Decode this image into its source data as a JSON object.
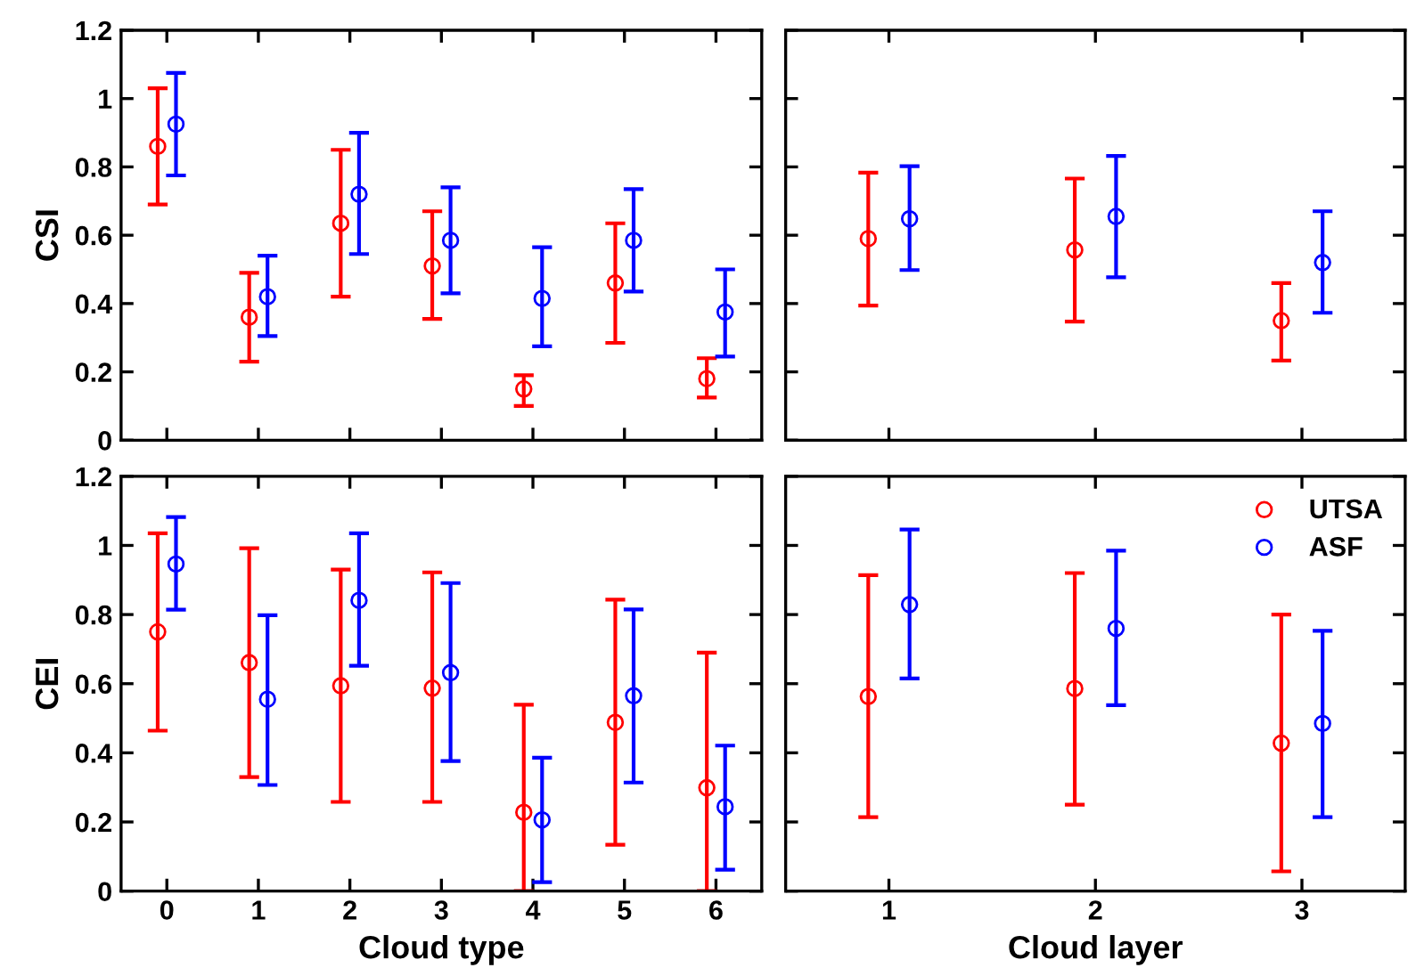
{
  "chart_data": [
    {
      "type": "scatter",
      "ylabel": "CSI",
      "categories": [
        "0",
        "1",
        "2",
        "3",
        "4",
        "5",
        "6"
      ],
      "ylim": [
        0,
        1.2
      ],
      "yticks": [
        0,
        0.2,
        0.4,
        0.6,
        0.8,
        1,
        1.2
      ],
      "tick_labels": "y",
      "marker": "circle",
      "grid": false,
      "legend": false,
      "series": [
        {
          "color": "#ff0000",
          "values": [
            0.86,
            0.36,
            0.635,
            0.51,
            0.15,
            0.46,
            0.18
          ],
          "errors": [
            [
              0.69,
              1.03
            ],
            [
              0.23,
              0.49
            ],
            [
              0.42,
              0.85
            ],
            [
              0.355,
              0.67
            ],
            [
              0.1,
              0.19
            ],
            [
              0.285,
              0.635
            ],
            [
              0.125,
              0.24
            ]
          ]
        },
        {
          "color": "#0000ff",
          "values": [
            0.925,
            0.42,
            0.72,
            0.585,
            0.415,
            0.585,
            0.375
          ],
          "errors": [
            [
              0.775,
              1.075
            ],
            [
              0.305,
              0.54
            ],
            [
              0.545,
              0.9
            ],
            [
              0.43,
              0.74
            ],
            [
              0.275,
              0.565
            ],
            [
              0.435,
              0.735
            ],
            [
              0.245,
              0.5
            ]
          ]
        }
      ]
    },
    {
      "type": "scatter",
      "categories": [
        "1",
        "2",
        "3"
      ],
      "ylim": [
        0,
        1.2
      ],
      "yticks": [
        0,
        0.2,
        0.4,
        0.6,
        0.8,
        1,
        1.2
      ],
      "tick_labels": false,
      "marker": "circle",
      "grid": false,
      "legend": false,
      "series": [
        {
          "color": "#ff0000",
          "values": [
            0.59,
            0.557,
            0.35
          ],
          "errors": [
            [
              0.394,
              0.783
            ],
            [
              0.347,
              0.766
            ],
            [
              0.233,
              0.46
            ]
          ]
        },
        {
          "color": "#0000ff",
          "values": [
            0.648,
            0.655,
            0.52
          ],
          "errors": [
            [
              0.498,
              0.802
            ],
            [
              0.477,
              0.832
            ],
            [
              0.373,
              0.67
            ]
          ]
        }
      ]
    },
    {
      "type": "scatter",
      "ylabel": "CEI",
      "xlabel": "Cloud type",
      "categories": [
        "0",
        "1",
        "2",
        "3",
        "4",
        "5",
        "6"
      ],
      "ylim": [
        0,
        1.2
      ],
      "yticks": [
        0,
        0.2,
        0.4,
        0.6,
        0.8,
        1,
        1.2
      ],
      "marker": "circle",
      "grid": false,
      "legend": false,
      "series": [
        {
          "color": "#ff0000",
          "values": [
            0.75,
            0.661,
            0.594,
            0.587,
            0.228,
            0.488,
            0.299
          ],
          "errors": [
            [
              0.464,
              1.035
            ],
            [
              0.33,
              0.992
            ],
            [
              0.258,
              0.93
            ],
            [
              0.258,
              0.922
            ],
            [
              0,
              0.539
            ],
            [
              0.134,
              0.843
            ],
            [
              0,
              0.69
            ]
          ]
        },
        {
          "color": "#0000ff",
          "values": [
            0.946,
            0.555,
            0.841,
            0.632,
            0.206,
            0.565,
            0.244
          ],
          "errors": [
            [
              0.814,
              1.082
            ],
            [
              0.307,
              0.798
            ],
            [
              0.652,
              1.035
            ],
            [
              0.376,
              0.891
            ],
            [
              0.026,
              0.386
            ],
            [
              0.314,
              0.815
            ],
            [
              0.062,
              0.421
            ]
          ]
        }
      ]
    },
    {
      "type": "scatter",
      "xlabel": "Cloud layer",
      "categories": [
        "1",
        "2",
        "3"
      ],
      "ylim": [
        0,
        1.2
      ],
      "yticks": [
        0,
        0.2,
        0.4,
        0.6,
        0.8,
        1,
        1.2
      ],
      "tick_labels": "x",
      "marker": "circle",
      "grid": false,
      "legend": "top right",
      "series": [
        {
          "name": "UTSA",
          "color": "#ff0000",
          "values": [
            0.563,
            0.586,
            0.428
          ],
          "errors": [
            [
              0.214,
              0.914
            ],
            [
              0.25,
              0.92
            ],
            [
              0.057,
              0.8
            ]
          ]
        },
        {
          "name": "ASF",
          "color": "#0000ff",
          "values": [
            0.829,
            0.76,
            0.485
          ],
          "errors": [
            [
              0.615,
              1.046
            ],
            [
              0.538,
              0.985
            ],
            [
              0.214,
              0.753
            ]
          ]
        }
      ]
    }
  ]
}
